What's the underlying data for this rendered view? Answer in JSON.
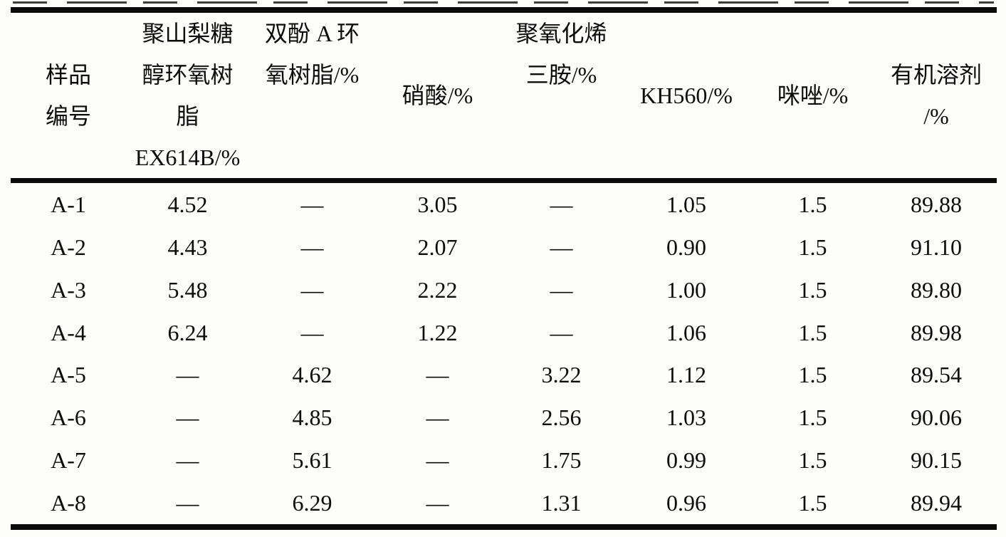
{
  "table": {
    "columns": [
      {
        "id": "sample",
        "label_lines": [
          "样品",
          "编号"
        ]
      },
      {
        "id": "ex614b_epoxy",
        "label_lines": [
          "聚山梨糖",
          "醇环氧树",
          "脂",
          "EX614B/%"
        ]
      },
      {
        "id": "bpa_epoxy",
        "label_lines": [
          "双酚 A 环",
          "氧树脂/%"
        ]
      },
      {
        "id": "nitric_acid",
        "label_lines": [
          "硝酸/%"
        ]
      },
      {
        "id": "triamine",
        "label_lines": [
          "聚氧化烯",
          "三胺/%"
        ]
      },
      {
        "id": "kh560",
        "label_lines": [
          "KH560/%"
        ]
      },
      {
        "id": "imidazole",
        "label_lines": [
          "咪唑/%"
        ]
      },
      {
        "id": "organic_solvent",
        "label_lines": [
          "有机溶剂",
          "/%"
        ]
      }
    ],
    "rows": [
      [
        "A-1",
        "4.52",
        "—",
        "3.05",
        "—",
        "1.05",
        "1.5",
        "89.88"
      ],
      [
        "A-2",
        "4.43",
        "—",
        "2.07",
        "—",
        "0.90",
        "1.5",
        "91.10"
      ],
      [
        "A-3",
        "5.48",
        "—",
        "2.22",
        "—",
        "1.00",
        "1.5",
        "89.80"
      ],
      [
        "A-4",
        "6.24",
        "—",
        "1.22",
        "—",
        "1.06",
        "1.5",
        "89.98"
      ],
      [
        "A-5",
        "—",
        "4.62",
        "—",
        "3.22",
        "1.12",
        "1.5",
        "89.54"
      ],
      [
        "A-6",
        "—",
        "4.85",
        "—",
        "2.56",
        "1.03",
        "1.5",
        "90.06"
      ],
      [
        "A-7",
        "—",
        "5.61",
        "—",
        "1.75",
        "0.99",
        "1.5",
        "90.15"
      ],
      [
        "A-8",
        "—",
        "6.29",
        "—",
        "1.31",
        "0.96",
        "1.5",
        "89.94"
      ]
    ]
  },
  "rules_color": "#0b0b0b"
}
